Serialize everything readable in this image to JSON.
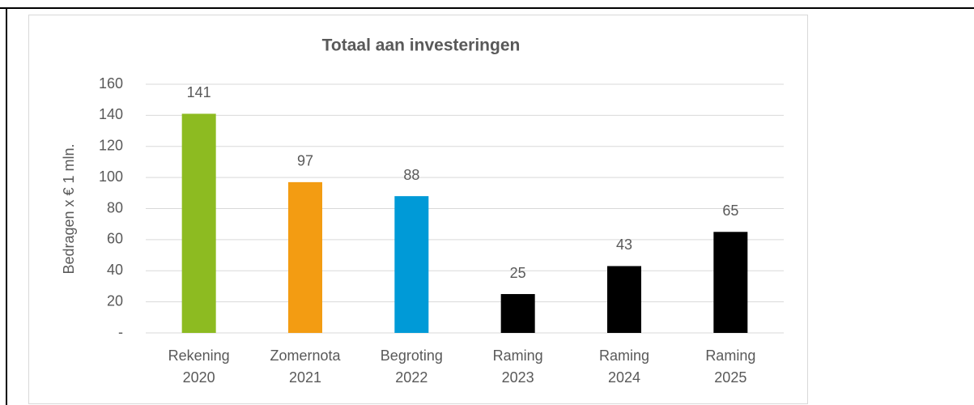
{
  "chart_data": {
    "type": "bar",
    "title": "Totaal aan investeringen",
    "y_label": "Bedragen x € 1 mln.",
    "categories": [
      [
        "Rekening",
        "2020"
      ],
      [
        "Zomernota",
        "2021"
      ],
      [
        "Begroting",
        "2022"
      ],
      [
        "Raming",
        "2023"
      ],
      [
        "Raming",
        "2024"
      ],
      [
        "Raming",
        "2025"
      ]
    ],
    "values": [
      141,
      97,
      88,
      25,
      43,
      65
    ],
    "colors": [
      "#8dbb21",
      "#f39c12",
      "#009ad7",
      "#000000",
      "#000000",
      "#000000"
    ],
    "ylim": [
      0,
      160
    ],
    "yticks": [
      {
        "value": 0,
        "label": "-"
      },
      20,
      40,
      60,
      80,
      100,
      120,
      140,
      160
    ],
    "grid": true
  }
}
